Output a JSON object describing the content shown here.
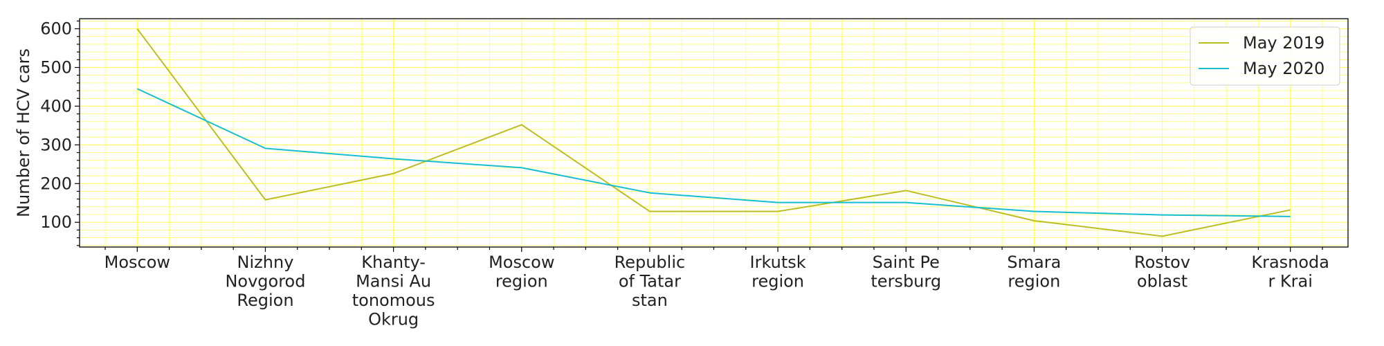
{
  "chart_data": {
    "type": "line",
    "title": "",
    "xlabel": "",
    "ylabel": "Number of HCV cars",
    "categories": [
      [
        "Moscow"
      ],
      [
        "Nizhny",
        "Novgorod",
        "Region"
      ],
      [
        "Khanty-",
        "Mansi Au",
        "tonomous",
        "Okrug"
      ],
      [
        "Moscow",
        "region"
      ],
      [
        "Republic",
        "of Tatar",
        "stan"
      ],
      [
        "Irkutsk",
        "region"
      ],
      [
        "Saint Pe",
        "tersburg"
      ],
      [
        "Smara",
        "region"
      ],
      [
        "Rostov",
        "oblast"
      ],
      [
        "Krasnoda",
        "r Krai"
      ]
    ],
    "series": [
      {
        "name": "May 2019",
        "color": "#bcbd22",
        "values": [
          600,
          158,
          226,
          352,
          128,
          128,
          182,
          104,
          64,
          132
        ]
      },
      {
        "name": "May 2020",
        "color": "#17becf",
        "values": [
          445,
          291,
          264,
          241,
          176,
          151,
          151,
          128,
          119,
          115
        ]
      }
    ],
    "ylim": [
      36,
      626
    ],
    "y_ticks": [
      100,
      200,
      300,
      400,
      500,
      600
    ],
    "x_range": [
      -0.45,
      9.45
    ],
    "grid": true,
    "grid_color": "#ffff66",
    "legend_position": "top-right"
  }
}
